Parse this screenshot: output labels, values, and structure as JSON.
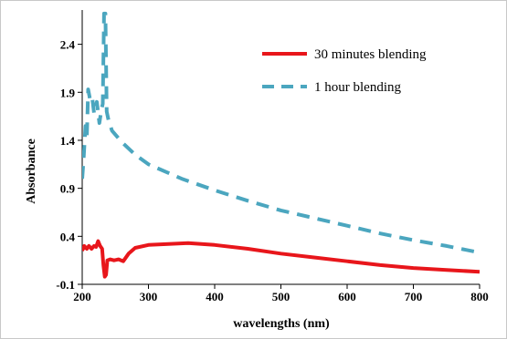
{
  "chart_data": {
    "type": "line",
    "title": "",
    "xlabel": "wavelengths (nm)",
    "ylabel": "Absorbance",
    "xlim": [
      200,
      800
    ],
    "ylim": [
      -0.1,
      2.7
    ],
    "x_ticks": [
      200,
      300,
      400,
      500,
      600,
      700,
      800
    ],
    "y_ticks": [
      -0.1,
      0.4,
      0.9,
      1.4,
      1.9,
      2.4
    ],
    "x_tick_labels": [
      "200",
      "300",
      "400",
      "500",
      "600",
      "700",
      "800"
    ],
    "y_tick_labels": [
      "-0.1",
      "0.4",
      "0.9",
      "1.4",
      "1.9",
      "2.4"
    ],
    "grid": false,
    "legend_position": "top-right",
    "series": [
      {
        "name": "30 minutes blending",
        "color": "#e8161b",
        "style": "solid",
        "points": [
          [
            200,
            0.25
          ],
          [
            203,
            0.3
          ],
          [
            207,
            0.27
          ],
          [
            210,
            0.3
          ],
          [
            214,
            0.27
          ],
          [
            218,
            0.3
          ],
          [
            221,
            0.29
          ],
          [
            224,
            0.35
          ],
          [
            227,
            0.3
          ],
          [
            230,
            0.27
          ],
          [
            232,
            0.1
          ],
          [
            234,
            -0.02
          ],
          [
            236,
            0.0
          ],
          [
            238,
            0.15
          ],
          [
            242,
            0.16
          ],
          [
            248,
            0.15
          ],
          [
            255,
            0.16
          ],
          [
            262,
            0.14
          ],
          [
            270,
            0.22
          ],
          [
            280,
            0.28
          ],
          [
            300,
            0.31
          ],
          [
            330,
            0.32
          ],
          [
            360,
            0.33
          ],
          [
            400,
            0.31
          ],
          [
            450,
            0.27
          ],
          [
            500,
            0.22
          ],
          [
            550,
            0.18
          ],
          [
            600,
            0.14
          ],
          [
            650,
            0.1
          ],
          [
            700,
            0.07
          ],
          [
            750,
            0.05
          ],
          [
            800,
            0.03
          ]
        ]
      },
      {
        "name": "1 hour blending",
        "color": "#4ba6bf",
        "style": "dashed",
        "points": [
          [
            200,
            1.0
          ],
          [
            202,
            1.2
          ],
          [
            205,
            1.55
          ],
          [
            207,
            1.45
          ],
          [
            209,
            1.93
          ],
          [
            212,
            1.82
          ],
          [
            215,
            1.85
          ],
          [
            218,
            1.68
          ],
          [
            222,
            1.8
          ],
          [
            226,
            1.58
          ],
          [
            229,
            1.72
          ],
          [
            231,
            1.78
          ],
          [
            233,
            2.72
          ],
          [
            235,
            2.72
          ],
          [
            237,
            1.7
          ],
          [
            240,
            1.6
          ],
          [
            245,
            1.5
          ],
          [
            260,
            1.38
          ],
          [
            280,
            1.25
          ],
          [
            300,
            1.15
          ],
          [
            350,
            1.0
          ],
          [
            400,
            0.88
          ],
          [
            450,
            0.77
          ],
          [
            500,
            0.67
          ],
          [
            550,
            0.59
          ],
          [
            600,
            0.51
          ],
          [
            650,
            0.43
          ],
          [
            700,
            0.36
          ],
          [
            750,
            0.3
          ],
          [
            800,
            0.23
          ]
        ]
      }
    ]
  }
}
